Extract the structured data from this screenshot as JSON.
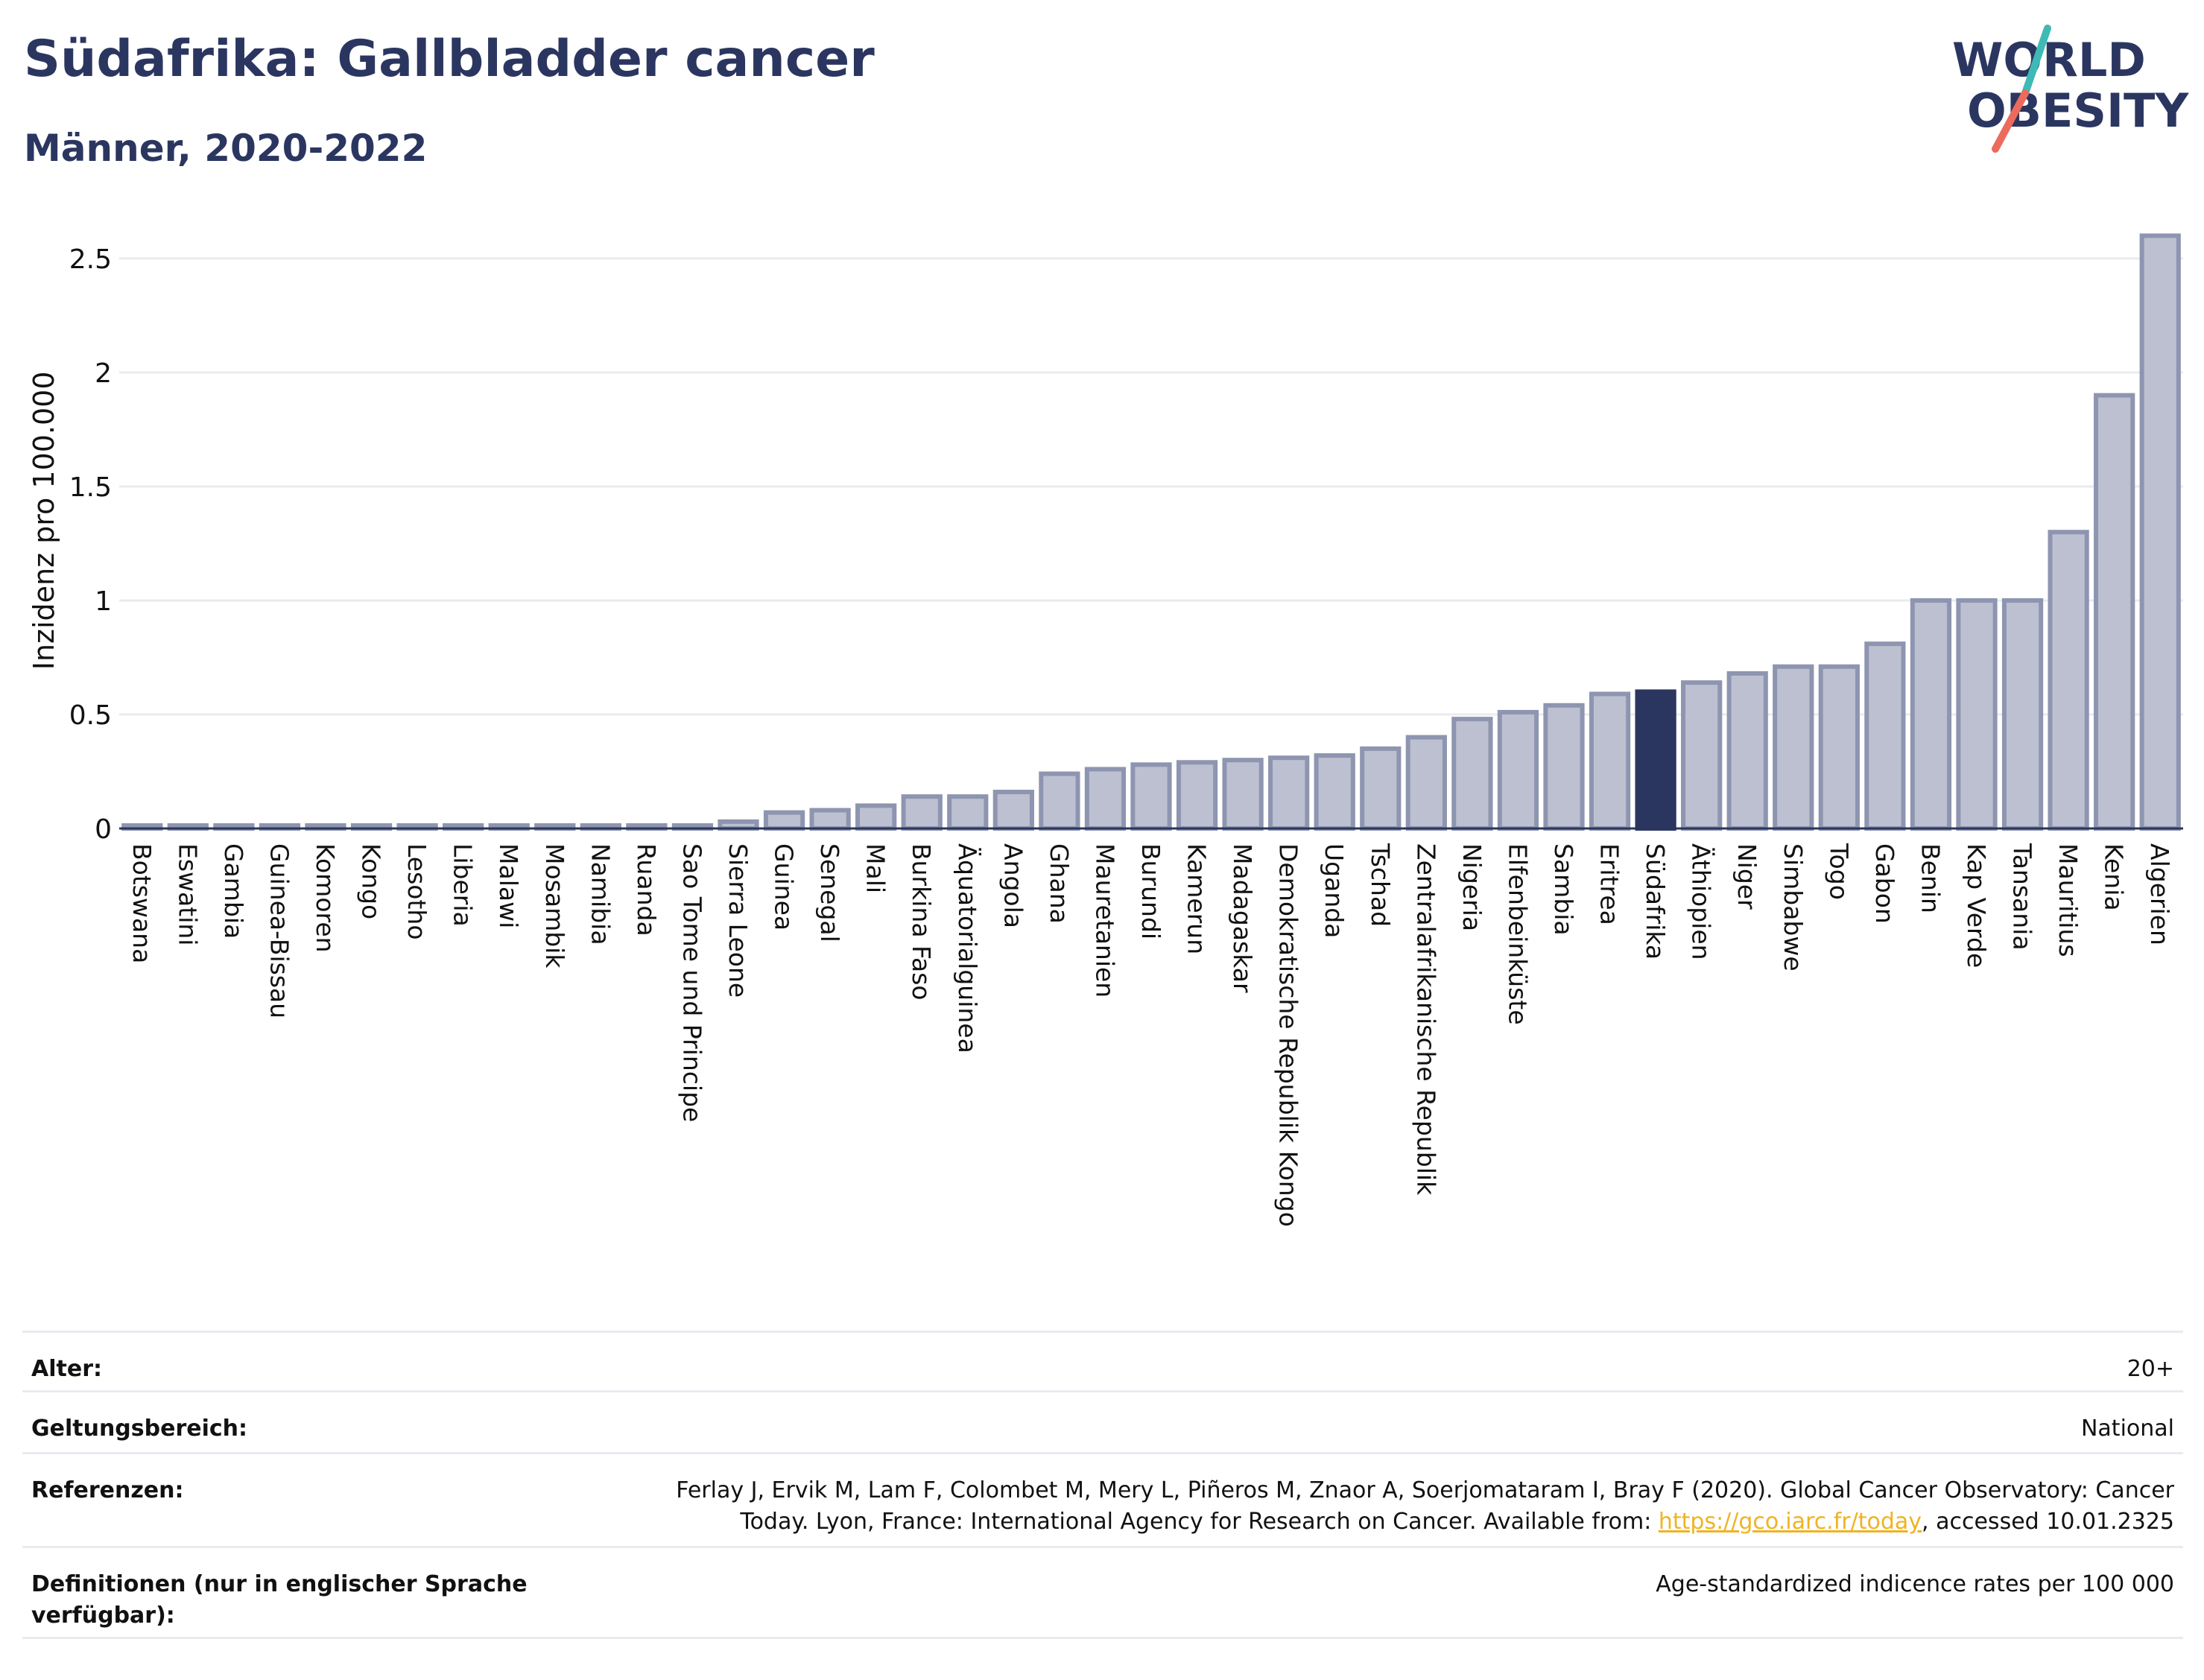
{
  "header": {
    "title": "Südafrika: Gallbladder cancer",
    "subtitle": "Männer, 2020-2022"
  },
  "logo": {
    "line1": "WORLD",
    "line2": "OBESITY",
    "icon": "world-obesity-logo"
  },
  "colors": {
    "bar": "#bcc0d0",
    "bar_stroke": "#8e95b0",
    "highlight": "#2b3660",
    "text": "#2b3660",
    "grid": "#e9ebf1"
  },
  "chart_data": {
    "type": "bar",
    "ylabel": "Inzidenz pro 100.000",
    "ylim": [
      0,
      2.7
    ],
    "yticks": [
      0,
      0.5,
      1,
      1.5,
      2,
      2.5
    ],
    "ytick_labels": [
      "0",
      "0.5",
      "1",
      "1.5",
      "2",
      "2.5"
    ],
    "grid": true,
    "highlight": "Südafrika",
    "categories": [
      "Botswana",
      "Eswatini",
      "Gambia",
      "Guinea-Bissau",
      "Komoren",
      "Kongo",
      "Lesotho",
      "Liberia",
      "Malawi",
      "Mosambik",
      "Namibia",
      "Ruanda",
      "Sao Tome und Principe",
      "Sierra Leone",
      "Guinea",
      "Senegal",
      "Mali",
      "Burkina Faso",
      "Äquatorialguinea",
      "Angola",
      "Ghana",
      "Mauretanien",
      "Burundi",
      "Kamerun",
      "Madagaskar",
      "Demokratische Republik Kongo",
      "Uganda",
      "Tschad",
      "Zentralafrikanische Republik",
      "Nigeria",
      "Elfenbeinküste",
      "Sambia",
      "Eritrea",
      "Südafrika",
      "Äthiopien",
      "Niger",
      "Simbabwe",
      "Togo",
      "Gabon",
      "Benin",
      "Kap Verde",
      "Tansania",
      "Mauritius",
      "Kenia",
      "Algerien"
    ],
    "values": [
      0,
      0,
      0,
      0,
      0,
      0,
      0,
      0,
      0,
      0,
      0,
      0,
      0,
      0.03,
      0.07,
      0.08,
      0.1,
      0.14,
      0.14,
      0.16,
      0.24,
      0.26,
      0.28,
      0.29,
      0.3,
      0.31,
      0.32,
      0.35,
      0.4,
      0.48,
      0.51,
      0.54,
      0.59,
      0.6,
      0.64,
      0.68,
      0.71,
      0.71,
      0.81,
      1.0,
      1.0,
      1.0,
      1.3,
      1.9,
      2.6
    ]
  },
  "meta": {
    "age_label": "Alter:",
    "age_value": "20+",
    "scope_label": "Geltungsbereich:",
    "scope_value": "National",
    "ref_label": "Referenzen:",
    "ref_line1": "Ferlay J, Ervik M, Lam F, Colombet M, Mery L, Piñeros M, Znaor A, Soerjomataram I, Bray F (2020). Global Cancer Observatory: Cancer",
    "ref_line2_pre": "Today. Lyon, France: International Agency for Research on Cancer. Available from: ",
    "ref_link": "https://gco.iarc.fr/today",
    "ref_line2_post": ", accessed 10.01.2325",
    "def_label": "Definitionen (nur in englischer Sprache verfügbar):",
    "def_value": "Age-standardized indicence rates per 100 000"
  }
}
